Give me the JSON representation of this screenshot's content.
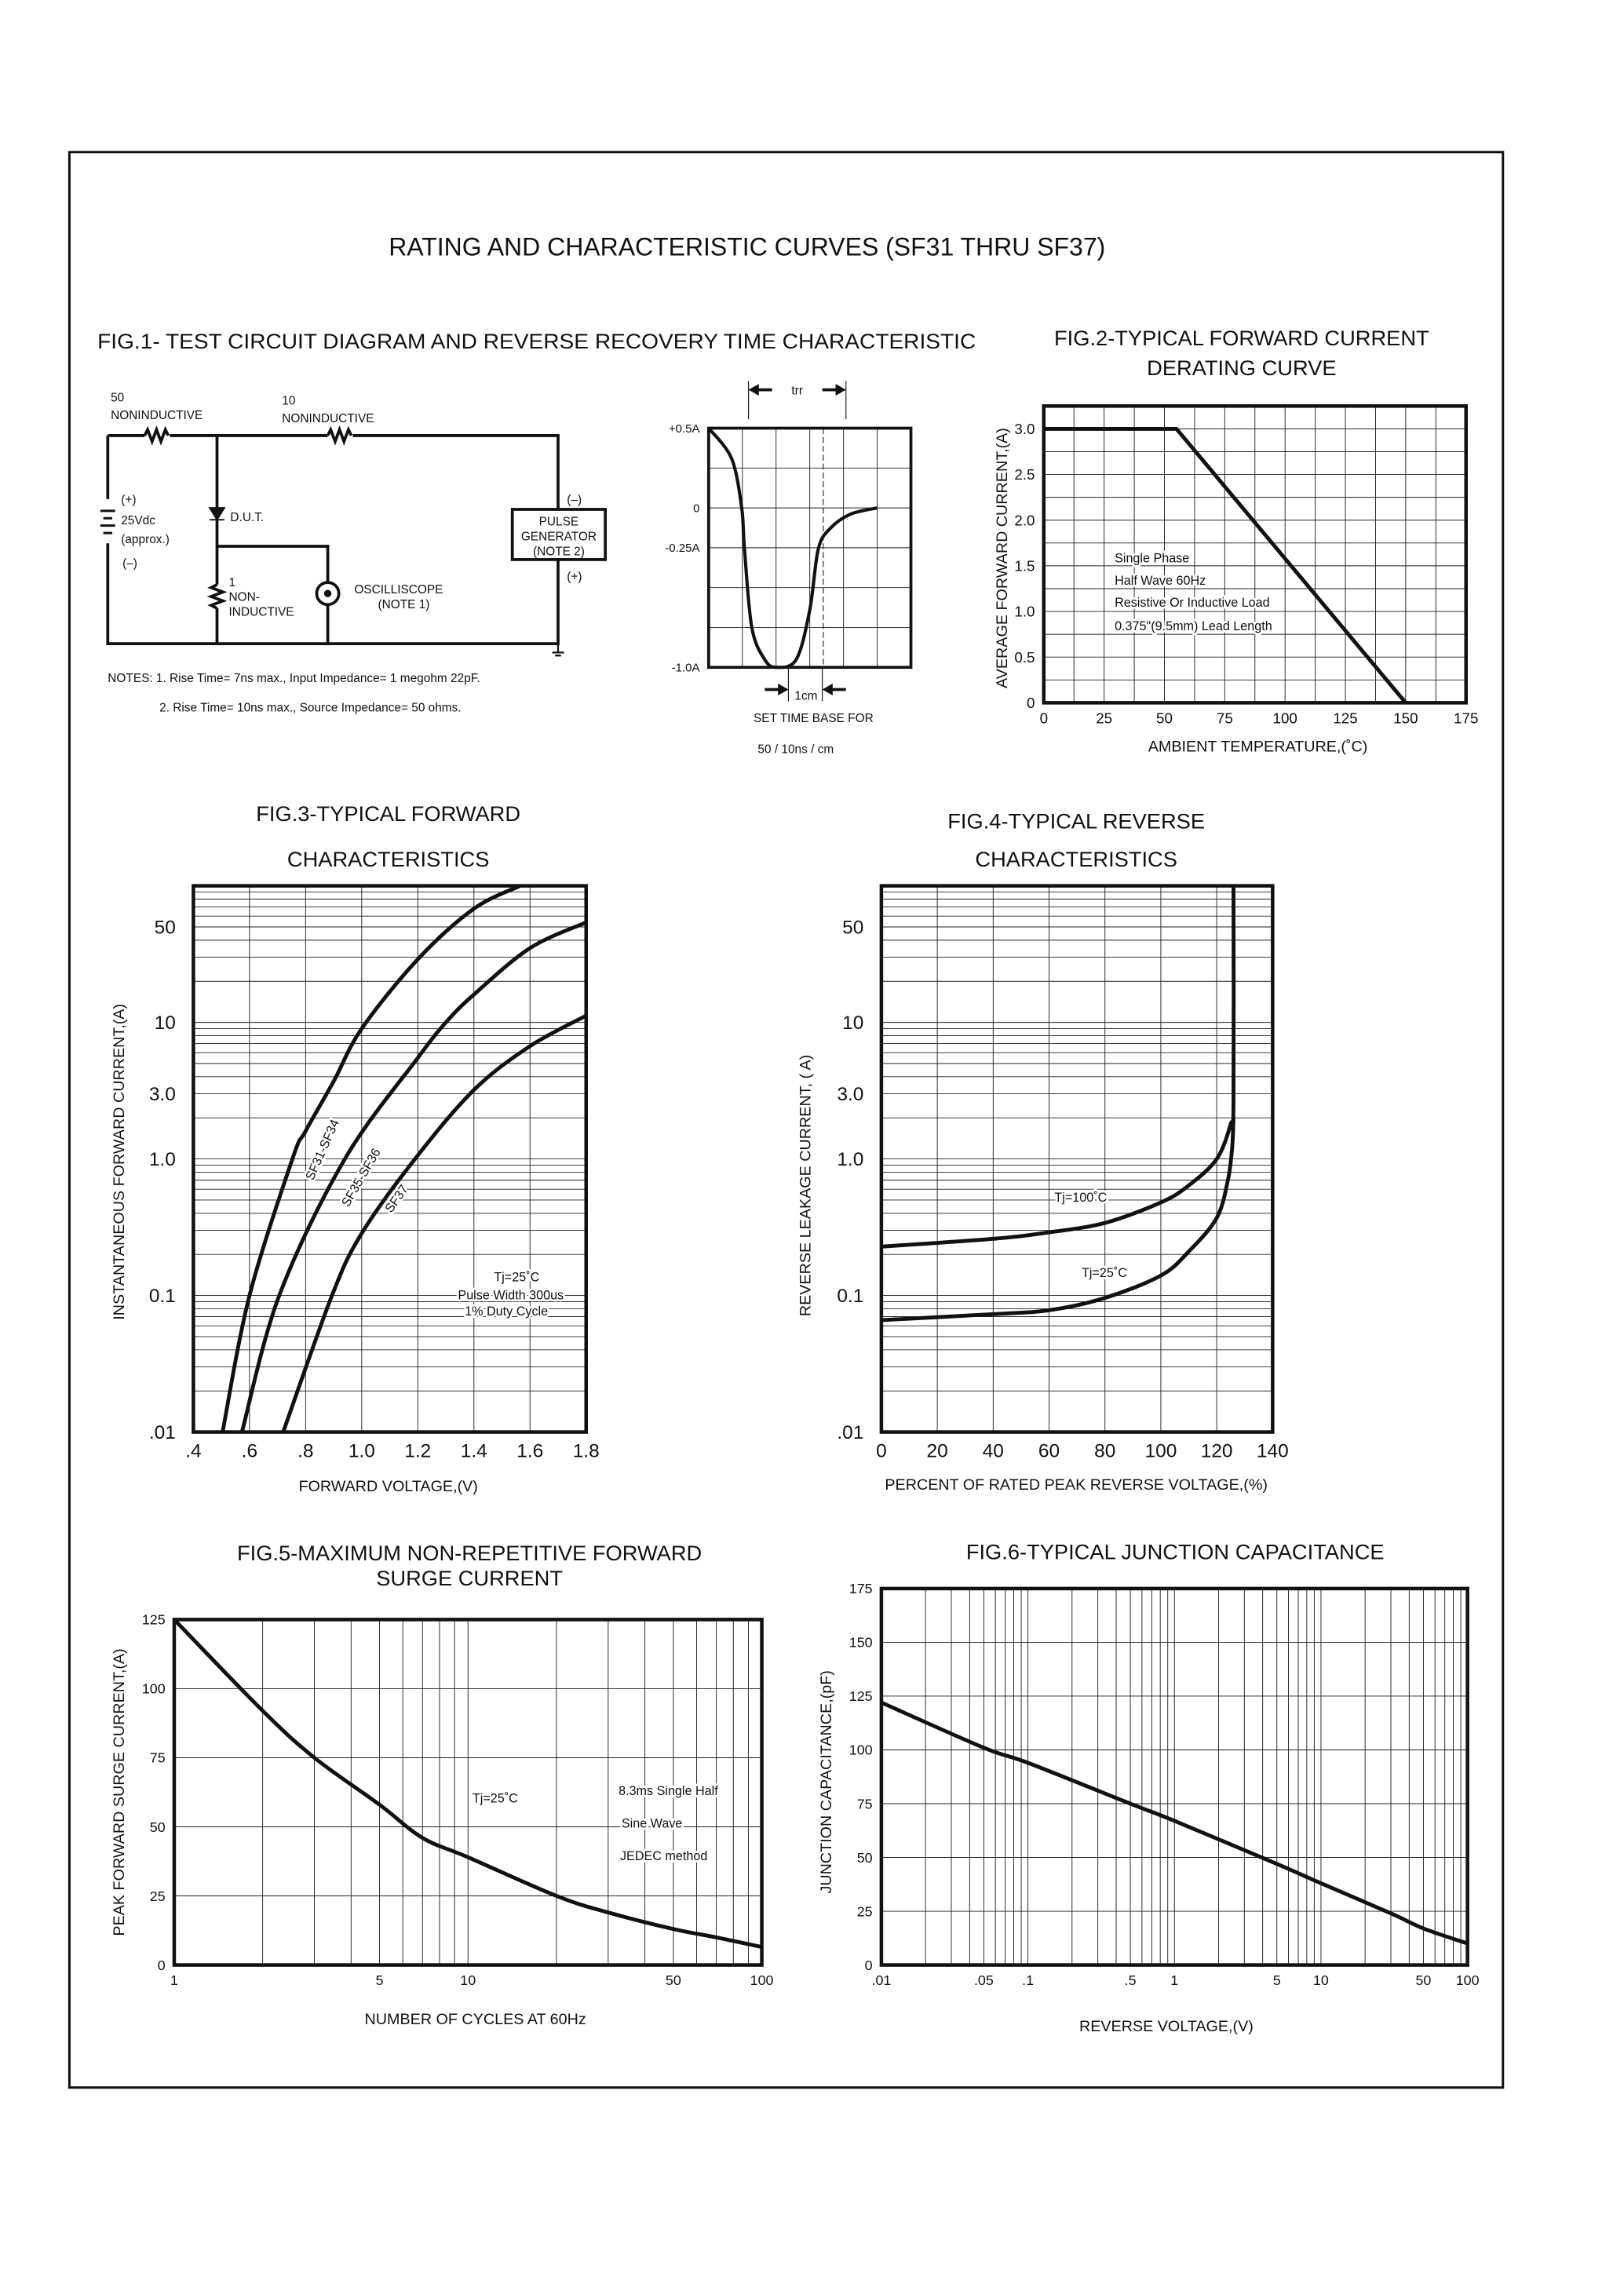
{
  "page": {
    "title": "RATING AND CHARACTERISTIC CURVES (SF31 THRU SF37)"
  },
  "fig1": {
    "title": "FIG.1- TEST CIRCUIT DIAGRAM AND REVERSE RECOVERY TIME CHARACTERISTIC",
    "r1_value": "50",
    "r1_type": "NONINDUCTIVE",
    "r2_value": "10",
    "r2_type": "NONINDUCTIVE",
    "battery_plus": "(+)",
    "battery_voltage": "25Vdc",
    "battery_approx": "(approx.)",
    "battery_minus": "(–)",
    "dut": "D.U.T.",
    "r3_value": "1",
    "r3_type_1": "NON-",
    "r3_type_2": "INDUCTIVE",
    "scope_1": "OSCILLISCOPE",
    "scope_2": "(NOTE 1)",
    "pulse_1": "PULSE",
    "pulse_2": "GENERATOR",
    "pulse_3": "(NOTE 2)",
    "pulse_minus": "(–)",
    "pulse_plus": "(+)",
    "note_1": "NOTES: 1. Rise Time= 7ns max., Input Impedance= 1 megohm 22pF.",
    "note_2": "2. Rise Time= 10ns max., Source Impedance= 50 ohms.",
    "trr_label": "trr",
    "cm_label": "1cm",
    "timebase_1": "SET TIME BASE FOR",
    "timebase_2": "50 / 10ns / cm"
  },
  "chart_data": [
    {
      "type": "line",
      "title_lines": [],
      "xlabel": "",
      "ylabel": "",
      "xscale": "linear",
      "yscale": "linear",
      "xlim": [
        0,
        6
      ],
      "ylim": [
        -1.0,
        0.5
      ],
      "xgrid_step": 1,
      "ygrid_step": 0.25,
      "grid": true,
      "xticks": [],
      "xtick_labels": [],
      "yticks": [
        0.5,
        0,
        -0.25,
        -1.0
      ],
      "ytick_labels": [
        "+0.5A",
        "0",
        "-0.25A",
        "-1.0A"
      ],
      "series": [
        {
          "x": [
            0,
            0.68,
            0.98,
            1.06,
            1.28,
            1.66,
            2.0,
            2.6,
            3.0,
            3.25,
            3.6,
            4.2,
            5.0
          ],
          "y": [
            0.5,
            0.31,
            0,
            -0.25,
            -0.75,
            -0.95,
            -1.0,
            -0.95,
            -0.64,
            -0.26,
            -0.13,
            -0.04,
            0
          ]
        }
      ],
      "annotations": []
    },
    {
      "type": "line",
      "title_lines": [
        "FIG.2-TYPICAL FORWARD CURRENT",
        "DERATING CURVE"
      ],
      "xlabel": "AMBIENT TEMPERATURE,(˚C)",
      "ylabel": "AVERAGE FORWARD CURRENT,(A)",
      "xscale": "linear",
      "yscale": "linear",
      "xlim": [
        0,
        175
      ],
      "ylim": [
        0,
        3.25
      ],
      "xgrid_step": 12.5,
      "ygrid_step": 0.25,
      "grid": true,
      "xticks": [
        0,
        25,
        50,
        75,
        100,
        125,
        150,
        175
      ],
      "xtick_labels": [
        "0",
        "25",
        "50",
        "75",
        "100",
        "125",
        "150",
        "175"
      ],
      "yticks": [
        0,
        0.5,
        1.0,
        1.5,
        2.0,
        2.5,
        3.0
      ],
      "ytick_labels": [
        "0",
        "0.5",
        "1.0",
        "1.5",
        "2.0",
        "2.5",
        "3.0"
      ],
      "series": [
        {
          "x": [
            0,
            55,
            150
          ],
          "y": [
            3.0,
            3.0,
            0
          ]
        }
      ],
      "annotations": [
        "Single Phase",
        "Half Wave 60Hz",
        "Resistive Or Inductive Load",
        "0.375\"(9.5mm) Lead Length"
      ]
    },
    {
      "type": "line",
      "title_lines": [
        "FIG.3-TYPICAL FORWARD",
        "CHARACTERISTICS"
      ],
      "xlabel": "FORWARD VOLTAGE,(V)",
      "ylabel": "INSTANTANEOUS FORWARD CURRENT,(A)",
      "xscale": "linear",
      "yscale": "log",
      "xlim": [
        0.4,
        1.8
      ],
      "ylim": [
        0.01,
        100
      ],
      "xgrid_step": 0.2,
      "grid": true,
      "xticks": [
        0.4,
        0.6,
        0.8,
        1.0,
        1.2,
        1.4,
        1.6,
        1.8
      ],
      "xtick_labels": [
        ".4",
        ".6",
        ".8",
        "1.0",
        "1.2",
        "1.4",
        "1.6",
        "1.8"
      ],
      "yticks": [
        0.01,
        0.1,
        1,
        3,
        10,
        50
      ],
      "ytick_labels": [
        ".01",
        "0.1",
        "1.0",
        "3.0",
        "10",
        "50"
      ],
      "series": [
        {
          "name": "SF31-SF34",
          "x": [
            0.504,
            0.6,
            0.753,
            0.8,
            0.9,
            1.0,
            1.2,
            1.4,
            1.565
          ],
          "y": [
            0.01,
            0.1,
            1.0,
            1.6,
            3.7,
            9,
            29,
            68,
            100
          ]
        },
        {
          "name": "SF35-SF36",
          "x": [
            0.573,
            0.706,
            0.94,
            1.2,
            1.3,
            1.4,
            1.6,
            1.8
          ],
          "y": [
            0.01,
            0.1,
            1.0,
            5.5,
            10,
            16,
            35,
            54
          ]
        },
        {
          "name": "SF37",
          "x": [
            0.72,
            0.894,
            1.0,
            1.19,
            1.4,
            1.6,
            1.8
          ],
          "y": [
            0.01,
            0.1,
            0.285,
            1.0,
            3.2,
            6.7,
            11.2
          ]
        }
      ],
      "annotations": [
        "Tj=25˚C",
        "Pulse Width 300us",
        "1% Duty Cycle"
      ]
    },
    {
      "type": "line",
      "title_lines": [
        "FIG.4-TYPICAL REVERSE",
        "CHARACTERISTICS"
      ],
      "xlabel": "PERCENT OF RATED PEAK REVERSE VOLTAGE,(%)",
      "ylabel": "REVERSE LEAKAGE CURRENT, (  A)",
      "xscale": "linear",
      "yscale": "log",
      "xlim": [
        0,
        140
      ],
      "ylim": [
        0.01,
        100
      ],
      "xgrid_step": 20,
      "grid": true,
      "xticks": [
        0,
        20,
        40,
        60,
        80,
        100,
        120,
        140
      ],
      "xtick_labels": [
        "0",
        "20",
        "40",
        "60",
        "80",
        "100",
        "120",
        "140"
      ],
      "yticks": [
        0.01,
        0.1,
        1,
        3,
        10,
        50
      ],
      "ytick_labels": [
        ".01",
        "0.1",
        "1.0",
        "3.0",
        "10",
        "50"
      ],
      "series": [
        {
          "name": "Tj=100˚C",
          "x": [
            0,
            40,
            60,
            80,
            100,
            110,
            120,
            125,
            126,
            126
          ],
          "y": [
            0.228,
            0.26,
            0.29,
            0.34,
            0.48,
            0.64,
            1.0,
            1.8,
            2.6,
            100
          ]
        },
        {
          "name": "Tj=25˚C",
          "x": [
            0,
            40,
            60,
            80,
            100,
            110,
            120,
            124,
            125.5,
            126
          ],
          "y": [
            0.066,
            0.073,
            0.078,
            0.096,
            0.14,
            0.21,
            0.37,
            0.7,
            1.2,
            2.0
          ]
        }
      ],
      "annotations": [
        "Tj=100˚C",
        "Tj=25˚C"
      ]
    },
    {
      "type": "line",
      "title_lines": [
        "FIG.5-MAXIMUM NON-REPETITIVE FORWARD",
        "SURGE CURRENT"
      ],
      "xlabel": "NUMBER OF CYCLES AT 60Hz",
      "ylabel": "PEAK FORWARD SURGE CURRENT,(A)",
      "xscale": "log",
      "yscale": "linear",
      "xlim": [
        1,
        100
      ],
      "ylim": [
        0,
        125
      ],
      "ygrid_step": 25,
      "grid": true,
      "xticks": [
        1,
        5,
        10,
        50,
        100
      ],
      "xtick_labels": [
        "1",
        "5",
        "10",
        "50",
        "100"
      ],
      "yticks": [
        0,
        25,
        50,
        75,
        100,
        125
      ],
      "ytick_labels": [
        "0",
        "25",
        "50",
        "75",
        "100",
        "125"
      ],
      "series": [
        {
          "x": [
            1,
            2,
            3,
            5,
            7,
            10,
            20,
            30,
            50,
            70,
            100
          ],
          "y": [
            125,
            92,
            75,
            58,
            46,
            39,
            25,
            19,
            13,
            10,
            6.5
          ]
        }
      ],
      "annotations": [
        "Tj=25˚C",
        "8.3ms Single Half",
        "Sine Wave",
        "JEDEC method"
      ]
    },
    {
      "type": "line",
      "title_lines": [
        "FIG.6-TYPICAL JUNCTION CAPACITANCE"
      ],
      "xlabel": "REVERSE VOLTAGE,(V)",
      "ylabel": "JUNCTION CAPACITANCE,(pF)",
      "xscale": "log",
      "yscale": "linear",
      "xlim": [
        0.01,
        100
      ],
      "ylim": [
        0,
        175
      ],
      "ygrid_step": 25,
      "grid": true,
      "xticks": [
        0.01,
        0.05,
        0.1,
        0.5,
        1,
        5,
        10,
        50,
        100
      ],
      "xtick_labels": [
        ".01",
        ".05",
        ".1",
        ".5",
        "1",
        "5",
        "10",
        "50",
        "100"
      ],
      "yticks": [
        0,
        25,
        50,
        75,
        100,
        125,
        150,
        175
      ],
      "ytick_labels": [
        "0",
        "25",
        "50",
        "75",
        "100",
        "125",
        "150",
        "175"
      ],
      "series": [
        {
          "x": [
            0.01,
            0.05,
            0.1,
            0.5,
            1,
            5,
            10,
            30,
            50,
            100
          ],
          "y": [
            122,
            101,
            94,
            75,
            67,
            47,
            38,
            24,
            17,
            10
          ]
        }
      ],
      "annotations": []
    }
  ]
}
